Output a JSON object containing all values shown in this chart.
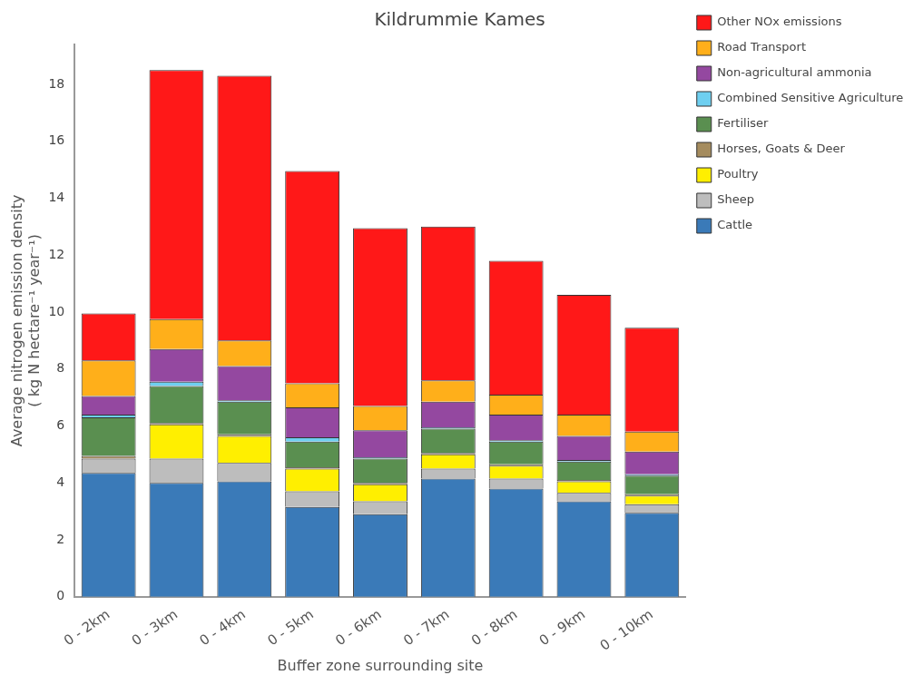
{
  "chart_data": {
    "type": "bar",
    "title": "Kildrummie Kames",
    "xlabel": "Buffer zone surrounding site",
    "ylabel": "Average nitrogen emission density\n( kg N hectare⁻¹ year⁻¹)",
    "categories": [
      "0 - 2km",
      "0 - 3km",
      "0 - 4km",
      "0 - 5km",
      "0 - 6km",
      "0 - 7km",
      "0 - 8km",
      "0 - 9km",
      "0 - 10km"
    ],
    "stacked": true,
    "grid": false,
    "legend": "right",
    "ylim": [
      0,
      19.4
    ],
    "yticks": [
      0,
      2,
      4,
      6,
      8,
      10,
      12,
      14,
      16,
      18
    ],
    "series": [
      {
        "name": "Cattle",
        "color": "#3a7ab8",
        "values": [
          4.35,
          4.0,
          4.05,
          3.15,
          2.9,
          4.15,
          3.8,
          3.35,
          2.95
        ]
      },
      {
        "name": "Sheep",
        "color": "#bdbdbd",
        "values": [
          0.5,
          0.85,
          0.65,
          0.55,
          0.45,
          0.35,
          0.35,
          0.3,
          0.3
        ]
      },
      {
        "name": "Poultry",
        "color": "#ffef00",
        "values": [
          0,
          1.2,
          0.95,
          0.8,
          0.6,
          0.5,
          0.45,
          0.4,
          0.3
        ]
      },
      {
        "name": "Horses, Goats & Deer",
        "color": "#a58c5e",
        "values": [
          0.1,
          0.05,
          0.05,
          0.05,
          0.05,
          0.05,
          0.05,
          0.05,
          0.05
        ]
      },
      {
        "name": "Fertiliser",
        "color": "#5a8f50",
        "values": [
          1.35,
          1.3,
          1.15,
          0.9,
          0.85,
          0.85,
          0.8,
          0.65,
          0.65
        ]
      },
      {
        "name": "Combined Sensitive Agriculture",
        "color": "#6ecff0",
        "values": [
          0.1,
          0.15,
          0.05,
          0.15,
          0.05,
          0.05,
          0.05,
          0.05,
          0.05
        ]
      },
      {
        "name": "Non-agricultural ammonia",
        "color": "#9448a0",
        "values": [
          0.65,
          1.15,
          1.2,
          1.05,
          0.95,
          0.9,
          0.9,
          0.85,
          0.8
        ]
      },
      {
        "name": "Road Transport",
        "color": "#ffaf1a",
        "values": [
          1.25,
          1.05,
          0.9,
          0.85,
          0.85,
          0.75,
          0.7,
          0.75,
          0.7
        ]
      },
      {
        "name": "Other NOx emissions",
        "color": "#ff1818",
        "values": [
          1.65,
          8.75,
          9.3,
          7.45,
          6.25,
          5.4,
          4.7,
          4.2,
          3.65
        ]
      }
    ]
  }
}
